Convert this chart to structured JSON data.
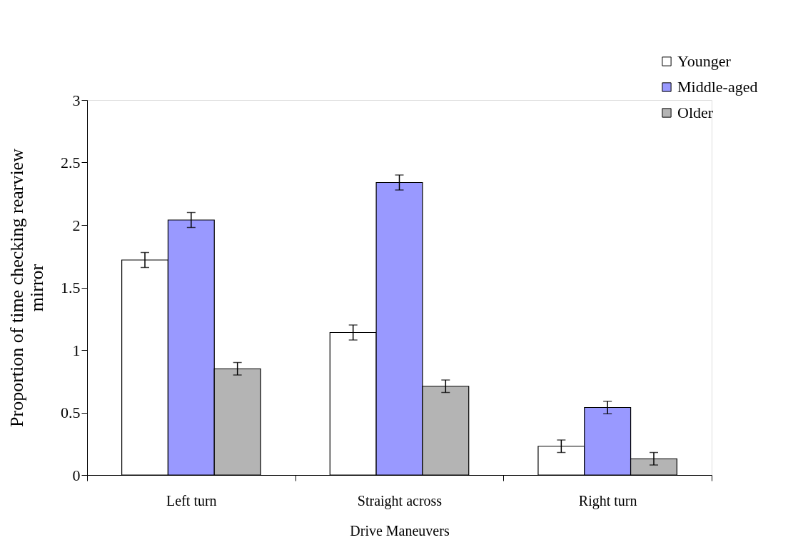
{
  "chart_data": {
    "type": "bar",
    "xlabel": "Drive Maneuvers",
    "ylabel": "Proportion of time checking rearview mirror",
    "categories": [
      "Left turn",
      "Straight across",
      "Right turn"
    ],
    "series": [
      {
        "name": "Younger",
        "color": "#ffffff",
        "values": [
          1.72,
          1.14,
          0.23
        ],
        "errors": [
          0.06,
          0.06,
          0.05
        ]
      },
      {
        "name": "Middle-aged",
        "color": "#9999ff",
        "values": [
          2.04,
          2.34,
          0.54
        ],
        "errors": [
          0.06,
          0.06,
          0.05
        ]
      },
      {
        "name": "Older",
        "color": "#b4b4b4",
        "values": [
          0.85,
          0.71,
          0.13
        ],
        "errors": [
          0.05,
          0.05,
          0.05
        ]
      }
    ],
    "ylim": [
      0,
      3
    ],
    "yticks": [
      0,
      0.5,
      1,
      1.5,
      2,
      2.5,
      3
    ],
    "grid": false,
    "legend": "top right"
  }
}
